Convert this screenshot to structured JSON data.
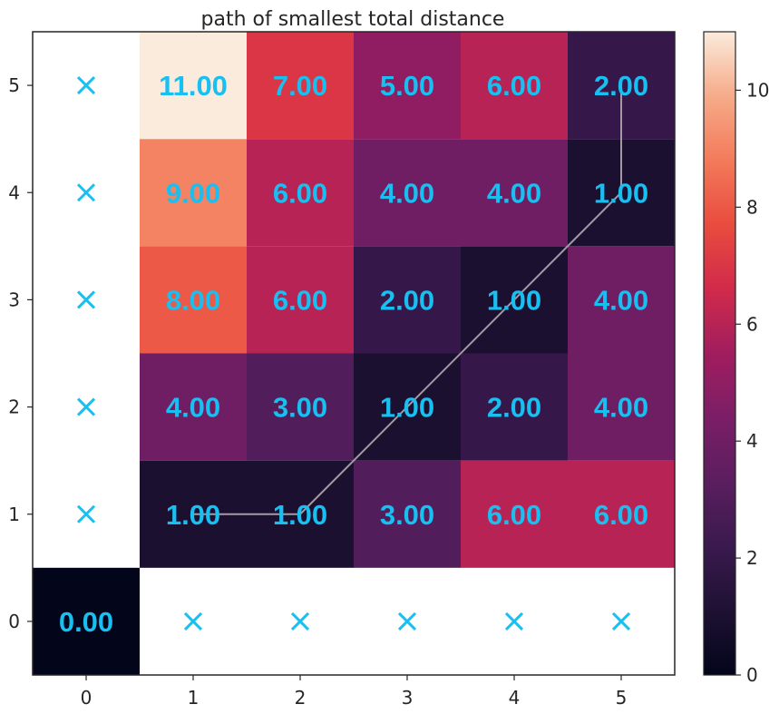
{
  "chart_data": {
    "type": "heatmap",
    "title": "path of smallest total distance",
    "xlabel": "",
    "ylabel": "",
    "x": [
      0,
      1,
      2,
      3,
      4,
      5
    ],
    "y": [
      0,
      1,
      2,
      3,
      4,
      5
    ],
    "xlim": [
      -0.5,
      5.5
    ],
    "ylim": [
      -0.5,
      5.5
    ],
    "values": [
      [
        0.0,
        null,
        null,
        null,
        null,
        null
      ],
      [
        null,
        1.0,
        1.0,
        3.0,
        6.0,
        6.0
      ],
      [
        null,
        4.0,
        3.0,
        1.0,
        2.0,
        4.0
      ],
      [
        null,
        8.0,
        6.0,
        2.0,
        1.0,
        4.0
      ],
      [
        null,
        9.0,
        6.0,
        4.0,
        4.0,
        1.0
      ],
      [
        null,
        11.0,
        7.0,
        5.0,
        6.0,
        2.0
      ]
    ],
    "masked_marker": "×",
    "path": [
      [
        1,
        1
      ],
      [
        2,
        1
      ],
      [
        3,
        2
      ],
      [
        4,
        3
      ],
      [
        5,
        4
      ],
      [
        5,
        5
      ]
    ],
    "colorbar": {
      "min": 0,
      "max": 11,
      "ticks": [
        0,
        2,
        4,
        6,
        8,
        10
      ],
      "colormap": "rocket"
    },
    "grid": false,
    "legend": "none",
    "colors": {
      "annotation": "#18bff1",
      "path": "#a39aa3",
      "masked_background": "#ffffff"
    }
  }
}
